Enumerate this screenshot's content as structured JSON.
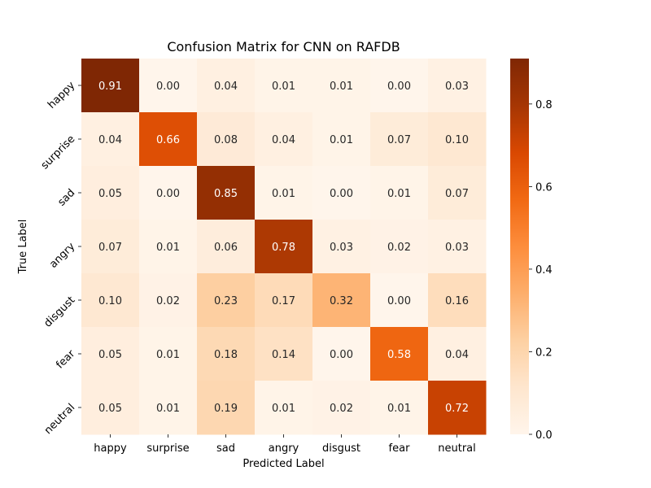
{
  "chart_data": {
    "type": "heatmap",
    "title": "Confusion Matrix for CNN on RAFDB",
    "xlabel": "Predicted Label",
    "ylabel": "True Label",
    "x_categories": [
      "happy",
      "surprise",
      "sad",
      "angry",
      "disgust",
      "fear",
      "neutral"
    ],
    "y_categories": [
      "happy",
      "surprise",
      "sad",
      "angry",
      "disgust",
      "fear",
      "neutral"
    ],
    "values": [
      [
        0.91,
        0.0,
        0.04,
        0.01,
        0.01,
        0.0,
        0.03
      ],
      [
        0.04,
        0.66,
        0.08,
        0.04,
        0.01,
        0.07,
        0.1
      ],
      [
        0.05,
        0.0,
        0.85,
        0.01,
        0.0,
        0.01,
        0.07
      ],
      [
        0.07,
        0.01,
        0.06,
        0.78,
        0.03,
        0.02,
        0.03
      ],
      [
        0.1,
        0.02,
        0.23,
        0.17,
        0.32,
        0.0,
        0.16
      ],
      [
        0.05,
        0.01,
        0.18,
        0.14,
        0.0,
        0.58,
        0.04
      ],
      [
        0.05,
        0.01,
        0.19,
        0.01,
        0.02,
        0.01,
        0.72
      ]
    ],
    "value_format": "0.00",
    "colormap": "Oranges",
    "colorbar": {
      "range": [
        0.0,
        0.91
      ],
      "ticks": [
        0.0,
        0.2,
        0.4,
        0.6,
        0.8
      ],
      "tick_labels": [
        "0.0",
        "0.2",
        "0.4",
        "0.6",
        "0.8"
      ]
    }
  }
}
